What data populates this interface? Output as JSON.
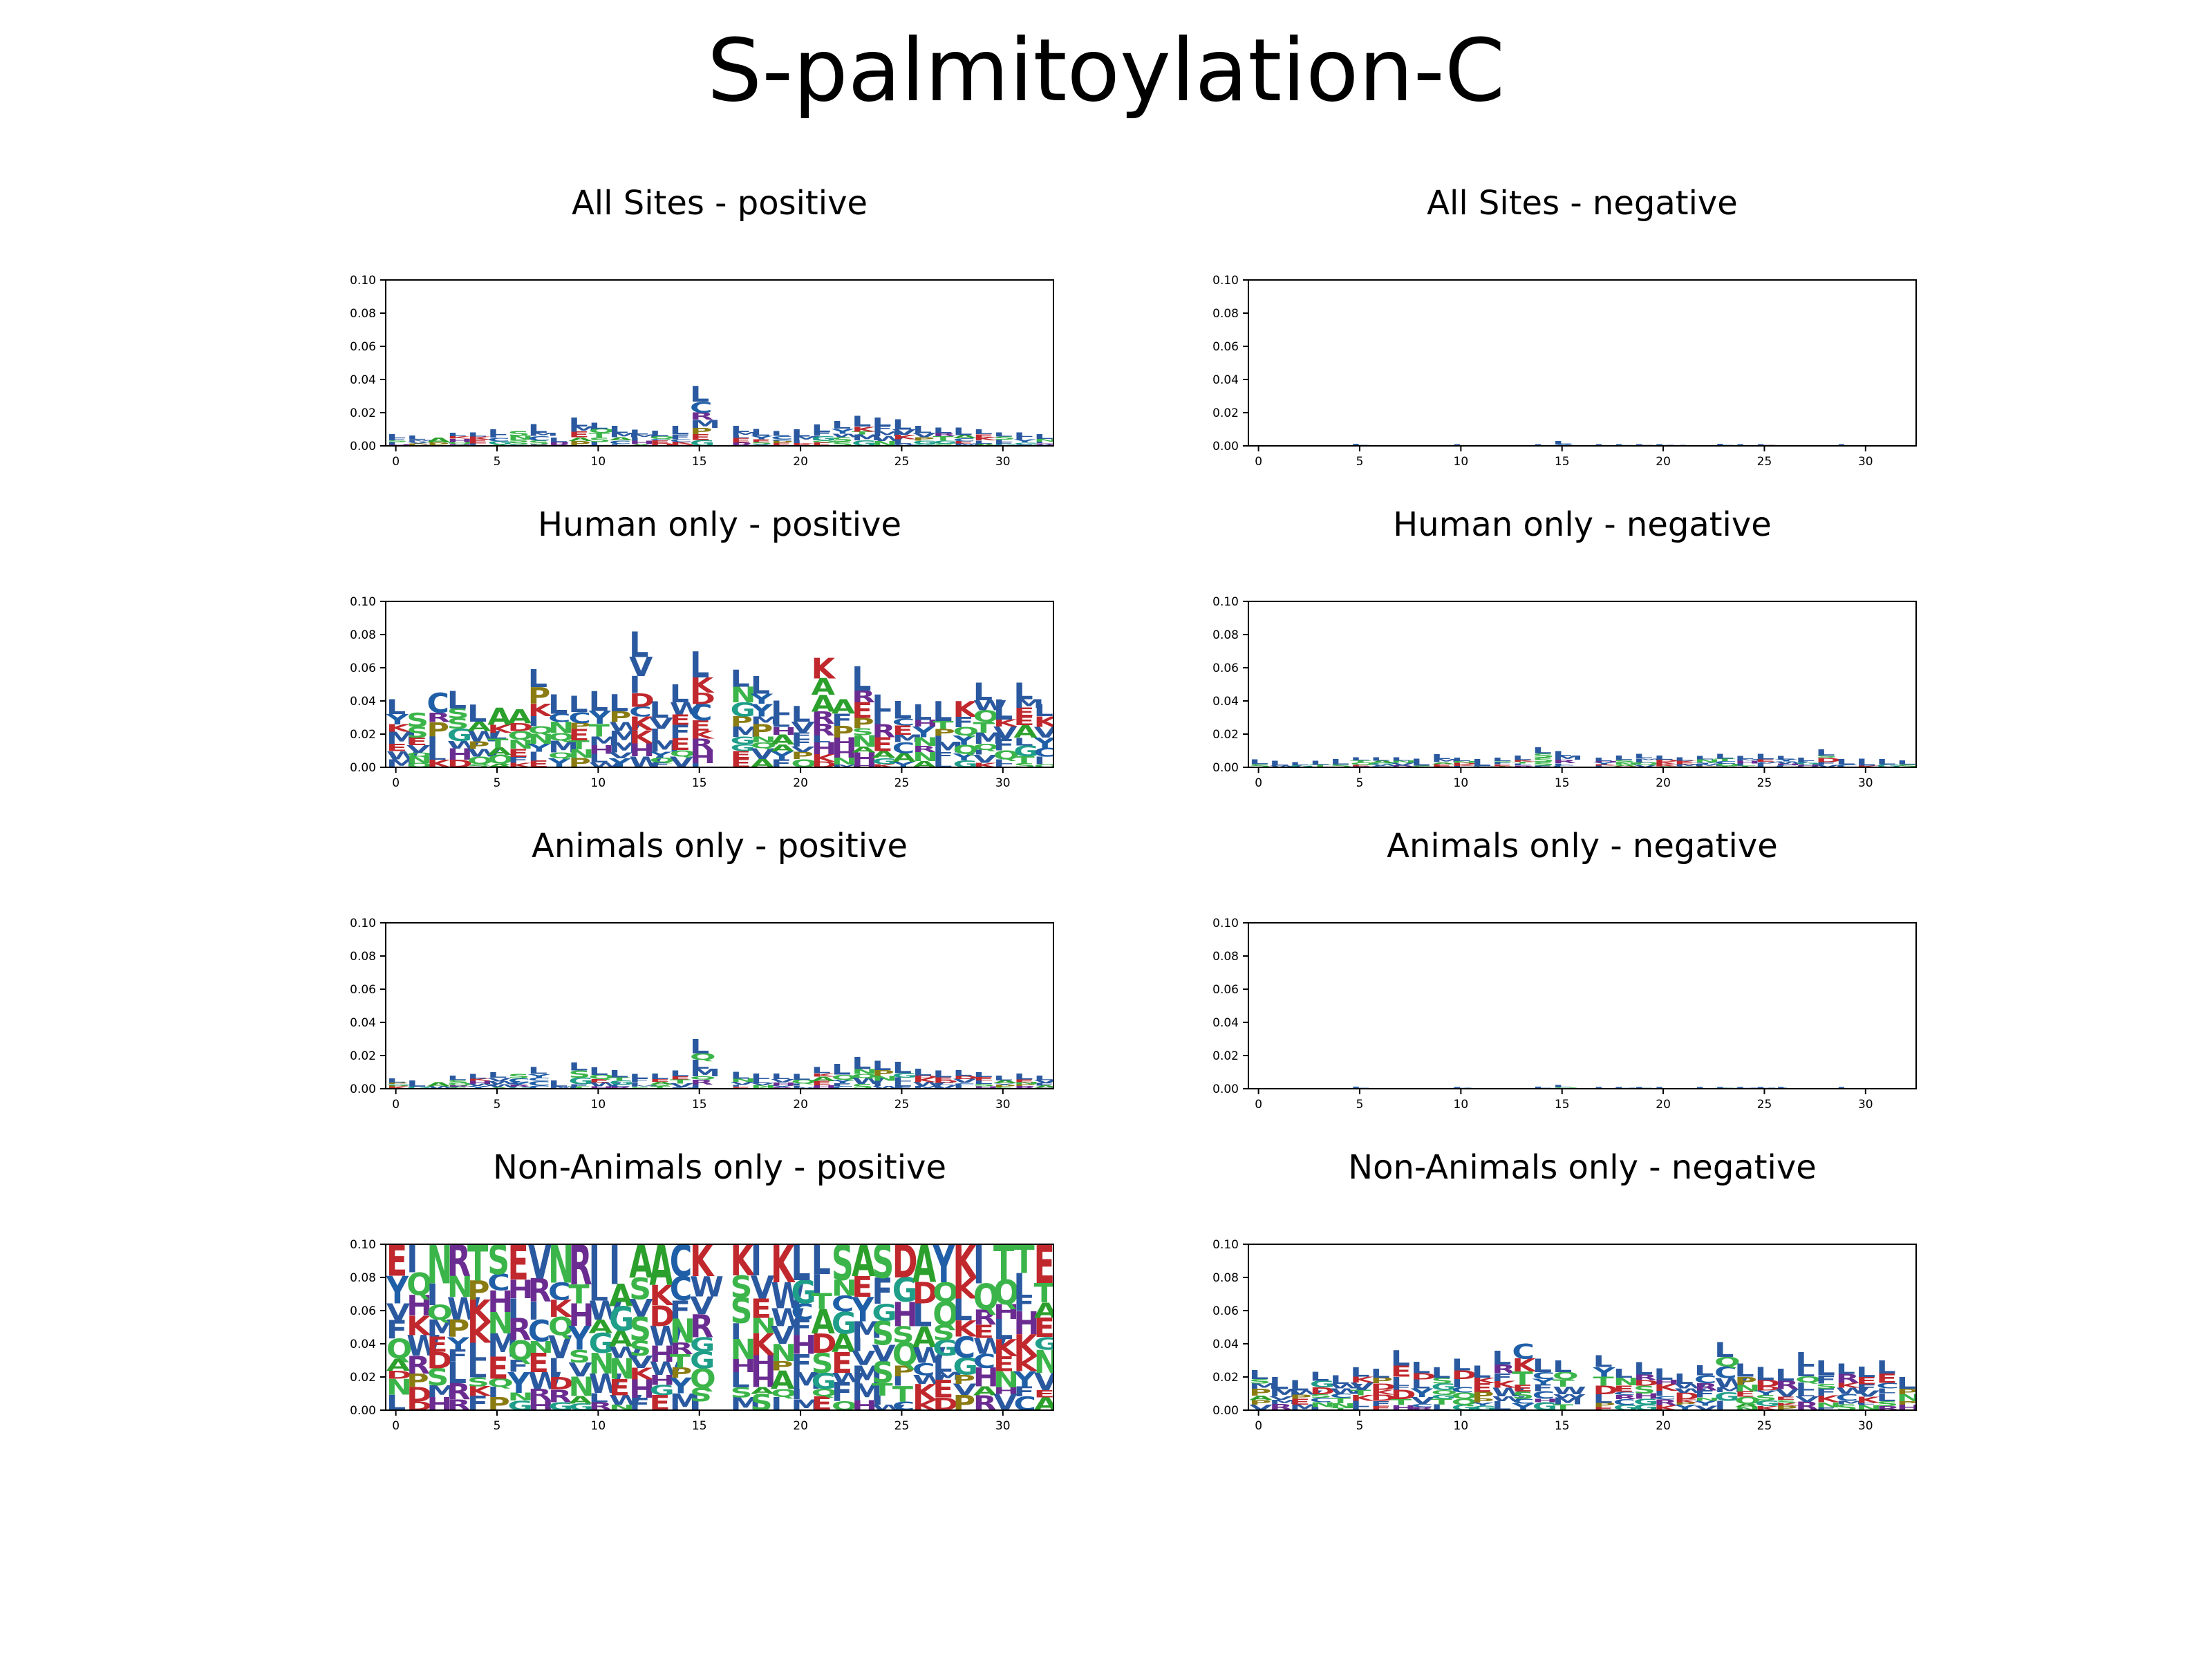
{
  "figure": {
    "title": "S-palmitoylation-C"
  },
  "letter_colors": {
    "A": "#2ca02c",
    "C": "#1f5fa8",
    "D": "#c0282d",
    "E": "#c0282d",
    "F": "#2a59a0",
    "G": "#1f9e89",
    "H": "#6b2c91",
    "I": "#2a59a0",
    "K": "#c0282d",
    "L": "#2a59a0",
    "M": "#2a59a0",
    "N": "#3bb54a",
    "P": "#8a7b12",
    "Q": "#3bb54a",
    "R": "#6b2c91",
    "S": "#3bb54a",
    "T": "#3bb54a",
    "V": "#2a59a0",
    "W": "#2a59a0",
    "Y": "#1f5fa8"
  },
  "chart_data": [
    {
      "type": "sequence-logo",
      "title": "All Sites - positive",
      "x_ticks": [
        "0",
        "5",
        "10",
        "15",
        "20",
        "25",
        "30"
      ],
      "y_ticks": [
        "0.00",
        "0.02",
        "0.04",
        "0.06",
        "0.08",
        "0.10"
      ],
      "xlim": [
        -0.5,
        32.5
      ],
      "ylim": [
        0,
        0.1
      ],
      "positions": [
        0,
        1,
        2,
        3,
        4,
        5,
        6,
        7,
        8,
        9,
        10,
        11,
        12,
        13,
        14,
        15,
        16,
        17,
        18,
        19,
        20,
        21,
        22,
        23,
        24,
        25,
        26,
        27,
        28,
        29,
        30,
        31,
        32
      ],
      "stack_heights": [
        0.007,
        0.006,
        0.005,
        0.008,
        0.008,
        0.01,
        0.009,
        0.013,
        0.005,
        0.017,
        0.014,
        0.012,
        0.01,
        0.009,
        0.012,
        0.036,
        0.0,
        0.012,
        0.01,
        0.009,
        0.01,
        0.013,
        0.015,
        0.018,
        0.017,
        0.016,
        0.012,
        0.011,
        0.011,
        0.01,
        0.008,
        0.008,
        0.007
      ],
      "top_letters": [
        "L",
        "L",
        "A",
        "L",
        "L",
        "L",
        "S",
        "L",
        "L",
        "L",
        "L",
        "L",
        "L",
        "L",
        "L",
        "L",
        "",
        "L",
        "L",
        "L",
        "L",
        "L",
        "L",
        "L",
        "L",
        "L",
        "L",
        "L",
        "L",
        "L",
        "L",
        "L",
        "L"
      ]
    },
    {
      "type": "sequence-logo",
      "title": "All Sites - negative",
      "x_ticks": [
        "0",
        "5",
        "10",
        "15",
        "20",
        "25",
        "30"
      ],
      "y_ticks": [
        "0.00",
        "0.02",
        "0.04",
        "0.06",
        "0.08",
        "0.10"
      ],
      "xlim": [
        -0.5,
        32.5
      ],
      "ylim": [
        0,
        0.1
      ],
      "positions": [
        0,
        1,
        2,
        3,
        4,
        5,
        6,
        7,
        8,
        9,
        10,
        11,
        12,
        13,
        14,
        15,
        16,
        17,
        18,
        19,
        20,
        21,
        22,
        23,
        24,
        25,
        26,
        27,
        28,
        29,
        30,
        31,
        32
      ],
      "stack_heights": [
        0.0,
        0.0,
        0.0,
        0.0,
        0.0,
        0.001,
        0.0,
        0.0,
        0.0,
        0.0,
        0.001,
        0.0,
        0.0,
        0.0,
        0.001,
        0.003,
        0.0,
        0.001,
        0.001,
        0.001,
        0.001,
        0.0,
        0.0,
        0.001,
        0.001,
        0.001,
        0.0,
        0.0,
        0.0,
        0.001,
        0.0,
        0.0,
        0.0
      ],
      "top_letters": [
        "",
        "",
        "",
        "",
        "",
        "L",
        "",
        "",
        "",
        "",
        "L",
        "",
        "",
        "",
        "L",
        "L",
        "",
        "L",
        "L",
        "L",
        "L",
        "",
        "",
        "L",
        "L",
        "L",
        "",
        "",
        "",
        "L",
        "",
        "",
        ""
      ]
    },
    {
      "type": "sequence-logo",
      "title": "Human only - positive",
      "x_ticks": [
        "0",
        "5",
        "10",
        "15",
        "20",
        "25",
        "30"
      ],
      "y_ticks": [
        "0.00",
        "0.02",
        "0.04",
        "0.06",
        "0.08",
        "0.10"
      ],
      "xlim": [
        -0.5,
        32.5
      ],
      "ylim": [
        0,
        0.1
      ],
      "positions": [
        0,
        1,
        2,
        3,
        4,
        5,
        6,
        7,
        8,
        9,
        10,
        11,
        12,
        13,
        14,
        15,
        16,
        17,
        18,
        19,
        20,
        21,
        22,
        23,
        24,
        25,
        26,
        27,
        28,
        29,
        30,
        31,
        32
      ],
      "stack_heights": [
        0.041,
        0.033,
        0.045,
        0.046,
        0.038,
        0.036,
        0.035,
        0.059,
        0.044,
        0.043,
        0.046,
        0.044,
        0.082,
        0.04,
        0.05,
        0.07,
        0.0,
        0.059,
        0.055,
        0.04,
        0.037,
        0.066,
        0.041,
        0.061,
        0.044,
        0.04,
        0.038,
        0.04,
        0.04,
        0.051,
        0.041,
        0.051,
        0.038
      ],
      "top_letters": [
        "L",
        "S",
        "C",
        "L",
        "L",
        "A",
        "A",
        "L",
        "L",
        "L",
        "L",
        "L",
        "L",
        "L",
        "L",
        "L",
        "",
        "L",
        "L",
        "L",
        "L",
        "K",
        "A",
        "L",
        "L",
        "L",
        "L",
        "L",
        "K",
        "L",
        "L",
        "L",
        "L"
      ]
    },
    {
      "type": "sequence-logo",
      "title": "Human only - negative",
      "x_ticks": [
        "0",
        "5",
        "10",
        "15",
        "20",
        "25",
        "30"
      ],
      "y_ticks": [
        "0.00",
        "0.02",
        "0.04",
        "0.06",
        "0.08",
        "0.10"
      ],
      "xlim": [
        -0.5,
        32.5
      ],
      "ylim": [
        0,
        0.1
      ],
      "positions": [
        0,
        1,
        2,
        3,
        4,
        5,
        6,
        7,
        8,
        9,
        10,
        11,
        12,
        13,
        14,
        15,
        16,
        17,
        18,
        19,
        20,
        21,
        22,
        23,
        24,
        25,
        26,
        27,
        28,
        29,
        30,
        31,
        32
      ],
      "stack_heights": [
        0.005,
        0.004,
        0.003,
        0.004,
        0.005,
        0.006,
        0.006,
        0.006,
        0.005,
        0.008,
        0.006,
        0.005,
        0.006,
        0.007,
        0.012,
        0.01,
        0.0,
        0.006,
        0.007,
        0.008,
        0.007,
        0.006,
        0.007,
        0.008,
        0.007,
        0.008,
        0.007,
        0.006,
        0.011,
        0.005,
        0.005,
        0.005,
        0.004
      ],
      "top_letters": [
        "L",
        "L",
        "L",
        "L",
        "L",
        "L",
        "L",
        "L",
        "L",
        "L",
        "L",
        "L",
        "L",
        "L",
        "L",
        "L",
        "",
        "L",
        "L",
        "L",
        "L",
        "L",
        "L",
        "L",
        "L",
        "L",
        "L",
        "L",
        "L",
        "L",
        "L",
        "L",
        "L"
      ]
    },
    {
      "type": "sequence-logo",
      "title": "Animals only - positive",
      "x_ticks": [
        "0",
        "5",
        "10",
        "15",
        "20",
        "25",
        "30"
      ],
      "y_ticks": [
        "0.00",
        "0.02",
        "0.04",
        "0.06",
        "0.08",
        "0.10"
      ],
      "xlim": [
        -0.5,
        32.5
      ],
      "ylim": [
        0,
        0.1
      ],
      "positions": [
        0,
        1,
        2,
        3,
        4,
        5,
        6,
        7,
        8,
        9,
        10,
        11,
        12,
        13,
        14,
        15,
        16,
        17,
        18,
        19,
        20,
        21,
        22,
        23,
        24,
        25,
        26,
        27,
        28,
        29,
        30,
        31,
        32
      ],
      "stack_heights": [
        0.006,
        0.005,
        0.004,
        0.008,
        0.009,
        0.01,
        0.009,
        0.013,
        0.005,
        0.016,
        0.013,
        0.011,
        0.009,
        0.009,
        0.011,
        0.03,
        0.0,
        0.01,
        0.009,
        0.009,
        0.009,
        0.013,
        0.015,
        0.019,
        0.017,
        0.016,
        0.012,
        0.011,
        0.011,
        0.01,
        0.008,
        0.009,
        0.008
      ],
      "top_letters": [
        "L",
        "L",
        "A",
        "L",
        "L",
        "L",
        "S",
        "L",
        "L",
        "L",
        "L",
        "L",
        "L",
        "L",
        "L",
        "L",
        "",
        "L",
        "L",
        "L",
        "L",
        "L",
        "L",
        "L",
        "L",
        "L",
        "L",
        "L",
        "L",
        "L",
        "L",
        "L",
        "L"
      ]
    },
    {
      "type": "sequence-logo",
      "title": "Animals only - negative",
      "x_ticks": [
        "0",
        "5",
        "10",
        "15",
        "20",
        "25",
        "30"
      ],
      "y_ticks": [
        "0.00",
        "0.02",
        "0.04",
        "0.06",
        "0.08",
        "0.10"
      ],
      "xlim": [
        -0.5,
        32.5
      ],
      "ylim": [
        0,
        0.1
      ],
      "positions": [
        0,
        1,
        2,
        3,
        4,
        5,
        6,
        7,
        8,
        9,
        10,
        11,
        12,
        13,
        14,
        15,
        16,
        17,
        18,
        19,
        20,
        21,
        22,
        23,
        24,
        25,
        26,
        27,
        28,
        29,
        30,
        31,
        32
      ],
      "stack_heights": [
        0.0,
        0.0,
        0.0,
        0.0,
        0.0,
        0.001,
        0.0,
        0.0,
        0.0,
        0.0,
        0.001,
        0.0,
        0.0,
        0.0,
        0.001,
        0.002,
        0.0,
        0.001,
        0.001,
        0.001,
        0.001,
        0.0,
        0.001,
        0.001,
        0.001,
        0.001,
        0.001,
        0.0,
        0.0,
        0.001,
        0.0,
        0.0,
        0.0
      ],
      "top_letters": [
        "",
        "",
        "",
        "",
        "",
        "L",
        "",
        "",
        "",
        "",
        "L",
        "",
        "",
        "",
        "L",
        "L",
        "",
        "L",
        "L",
        "L",
        "L",
        "",
        "L",
        "L",
        "L",
        "L",
        "L",
        "",
        "",
        "L",
        "",
        "",
        ""
      ]
    },
    {
      "type": "sequence-logo",
      "title": "Non-Animals only - positive",
      "x_ticks": [
        "0",
        "5",
        "10",
        "15",
        "20",
        "25",
        "30"
      ],
      "y_ticks": [
        "0.00",
        "0.02",
        "0.04",
        "0.06",
        "0.08",
        "0.10"
      ],
      "xlim": [
        -0.5,
        32.5
      ],
      "ylim": [
        0,
        0.1
      ],
      "positions": [
        0,
        1,
        2,
        3,
        4,
        5,
        6,
        7,
        8,
        9,
        10,
        11,
        12,
        13,
        14,
        15,
        16,
        17,
        18,
        19,
        20,
        21,
        22,
        23,
        24,
        25,
        26,
        27,
        28,
        29,
        30,
        31,
        32
      ],
      "stack_heights": [
        0.1,
        0.1,
        0.1,
        0.1,
        0.1,
        0.1,
        0.1,
        0.1,
        0.1,
        0.1,
        0.1,
        0.1,
        0.1,
        0.1,
        0.1,
        0.1,
        0.0,
        0.1,
        0.1,
        0.1,
        0.1,
        0.1,
        0.1,
        0.1,
        0.1,
        0.1,
        0.1,
        0.1,
        0.1,
        0.1,
        0.1,
        0.1,
        0.1
      ],
      "top_letters": [
        "E",
        "I",
        "N",
        "R",
        "T",
        "S",
        "E",
        "V",
        "N",
        "R",
        "I",
        "I",
        "A",
        "A",
        "C",
        "K",
        "",
        "K",
        "I",
        "K",
        "L",
        "L",
        "S",
        "A",
        "S",
        "D",
        "A",
        "Y",
        "K",
        "I",
        "T",
        "T",
        "E"
      ]
    },
    {
      "type": "sequence-logo",
      "title": "Non-Animals only - negative",
      "x_ticks": [
        "0",
        "5",
        "10",
        "15",
        "20",
        "25",
        "30"
      ],
      "y_ticks": [
        "0.00",
        "0.02",
        "0.04",
        "0.06",
        "0.08",
        "0.10"
      ],
      "xlim": [
        -0.5,
        32.5
      ],
      "ylim": [
        0,
        0.1
      ],
      "positions": [
        0,
        1,
        2,
        3,
        4,
        5,
        6,
        7,
        8,
        9,
        10,
        11,
        12,
        13,
        14,
        15,
        16,
        17,
        18,
        19,
        20,
        21,
        22,
        23,
        24,
        25,
        26,
        27,
        28,
        29,
        30,
        31,
        32
      ],
      "stack_heights": [
        0.024,
        0.02,
        0.018,
        0.023,
        0.021,
        0.026,
        0.025,
        0.036,
        0.029,
        0.026,
        0.031,
        0.027,
        0.036,
        0.04,
        0.031,
        0.03,
        0.0,
        0.033,
        0.025,
        0.029,
        0.025,
        0.022,
        0.027,
        0.041,
        0.028,
        0.026,
        0.025,
        0.035,
        0.03,
        0.028,
        0.026,
        0.03,
        0.02
      ],
      "top_letters": [
        "L",
        "L",
        "L",
        "L",
        "L",
        "L",
        "L",
        "L",
        "L",
        "L",
        "L",
        "L",
        "L",
        "C",
        "L",
        "L",
        "",
        "L",
        "L",
        "L",
        "L",
        "L",
        "L",
        "L",
        "L",
        "L",
        "L",
        "L",
        "L",
        "L",
        "L",
        "L",
        "L"
      ]
    }
  ]
}
